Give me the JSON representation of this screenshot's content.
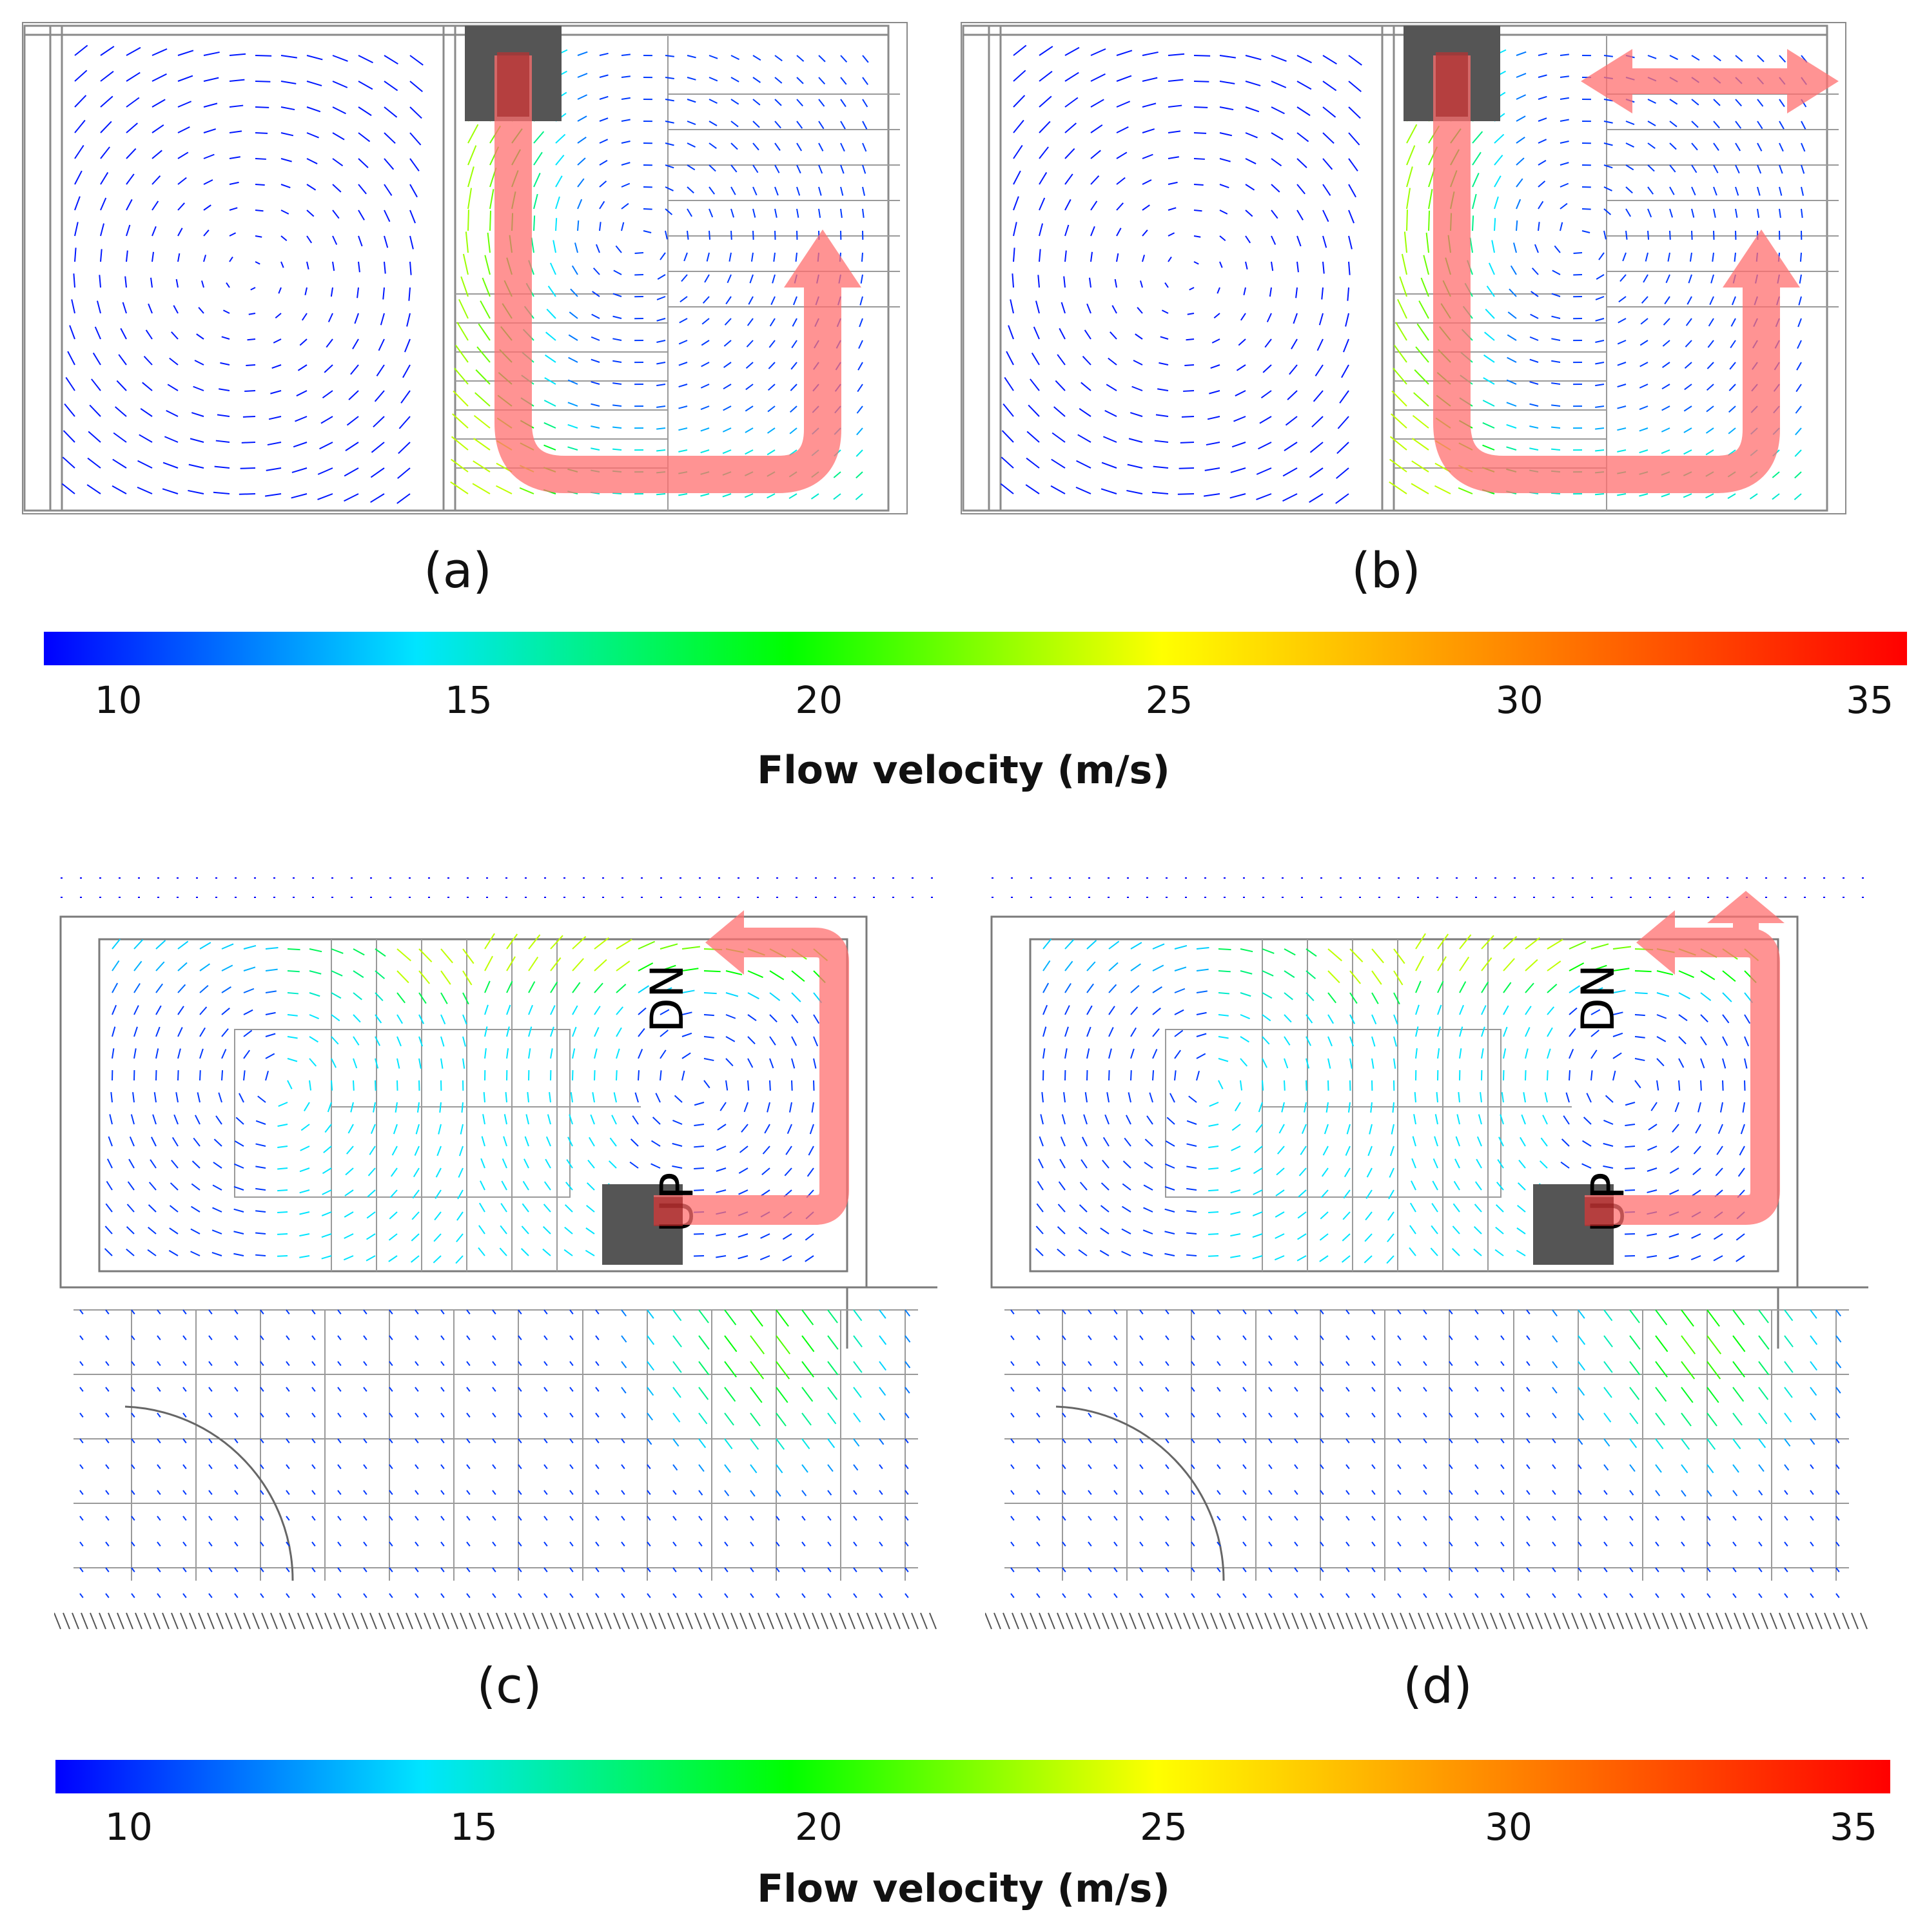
{
  "panels": [
    {
      "id": "a",
      "caption": "(a)",
      "view": "section",
      "arrow_type": "single"
    },
    {
      "id": "b",
      "caption": "(b)",
      "view": "section",
      "arrow_type": "split"
    },
    {
      "id": "c",
      "caption": "(c)",
      "view": "plan",
      "arrow_type": "single",
      "labels": [
        "DN",
        "UP"
      ]
    },
    {
      "id": "d",
      "caption": "(d)",
      "view": "plan",
      "arrow_type": "split",
      "labels": [
        "DN",
        "UP"
      ]
    }
  ],
  "colorbar_top": {
    "title": "Flow velocity   (m/s)",
    "ticks": [
      "10",
      "15",
      "20",
      "25",
      "30",
      "35"
    ],
    "min": 10,
    "max": 35
  },
  "colorbar_bottom": {
    "title": "Flow velocity   (m/s)",
    "ticks": [
      "10",
      "15",
      "20",
      "25",
      "30",
      "35"
    ],
    "min": 10,
    "max": 35
  },
  "colors": {
    "gradient": [
      "#0000ff",
      "#00e5ff",
      "#00ff00",
      "#ffff00",
      "#ff7f00",
      "#ff0000"
    ],
    "flow_arrow": "#ff6f6f",
    "fan_box": "#555555",
    "vector_low": "#3333ee",
    "wall_lines": "#8a8a8a"
  }
}
